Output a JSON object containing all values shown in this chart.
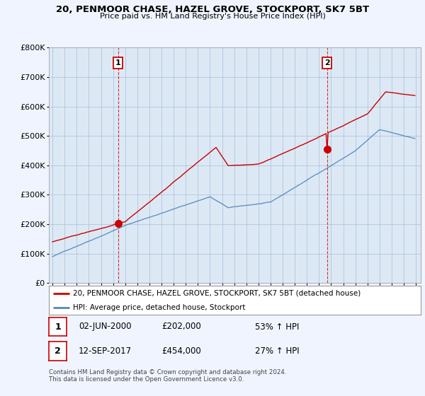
{
  "title": "20, PENMOOR CHASE, HAZEL GROVE, STOCKPORT, SK7 5BT",
  "subtitle": "Price paid vs. HM Land Registry's House Price Index (HPI)",
  "ylim": [
    0,
    800000
  ],
  "yticks": [
    0,
    100000,
    200000,
    300000,
    400000,
    500000,
    600000,
    700000,
    800000
  ],
  "ytick_labels": [
    "£0",
    "£100K",
    "£200K",
    "£300K",
    "£400K",
    "£500K",
    "£600K",
    "£700K",
    "£800K"
  ],
  "bg_color": "#dce9f5",
  "plot_bg": "#dce9f5",
  "outer_bg": "#f0f4ff",
  "grid_color": "#b0c4de",
  "red_color": "#cc0000",
  "blue_color": "#5588bb",
  "transaction1": {
    "date_idx": 66,
    "price": 202000,
    "label": "1"
  },
  "transaction2": {
    "date_idx": 271,
    "price": 454000,
    "label": "2"
  },
  "footer": "Contains HM Land Registry data © Crown copyright and database right 2024.\nThis data is licensed under the Open Government Licence v3.0.",
  "legend_entry1": "20, PENMOOR CHASE, HAZEL GROVE, STOCKPORT, SK7 5BT (detached house)",
  "legend_entry2": "HPI: Average price, detached house, Stockport",
  "table_row1": [
    "1",
    "02-JUN-2000",
    "£202,000",
    "53% ↑ HPI"
  ],
  "table_row2": [
    "2",
    "12-SEP-2017",
    "£454,000",
    "27% ↑ HPI"
  ]
}
